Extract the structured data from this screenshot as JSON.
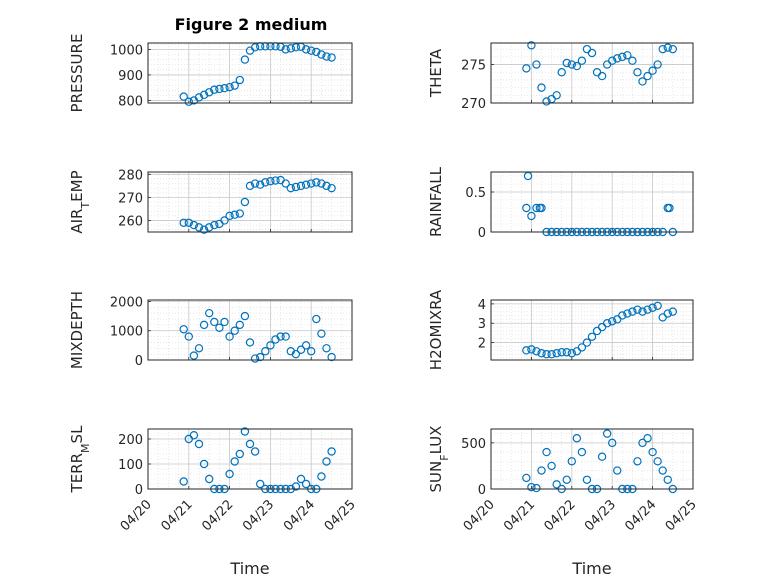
{
  "figure": {
    "title": "Figure 2 medium",
    "date_ticks": [
      "04/20",
      "04/21",
      "04/22",
      "04/23",
      "04/24",
      "04/25"
    ],
    "marker_color": "#0072BD",
    "marker": "open-circle",
    "grid": "major-and-minor-dotted"
  },
  "chart_data": [
    {
      "type": "scatter",
      "title": "Figure 2 medium",
      "ylabel": "PRESSURE",
      "ylabel_parts": [
        {
          "text": "PRESSURE"
        }
      ],
      "xlabel": "",
      "xlim": [
        "2023-04-20",
        "2023-04-25"
      ],
      "ylim": [
        790,
        1025
      ],
      "yticks": [
        "800",
        "900",
        "1000"
      ],
      "y_tick_values": [
        800,
        900,
        1000
      ],
      "xticks": [
        "04/20",
        "04/21",
        "04/22",
        "04/23",
        "04/24",
        "04/25"
      ],
      "show_xtick_labels": false,
      "grid": true,
      "x": [
        "04/20 21:00",
        "04/21 00:00",
        "04/21 03:00",
        "04/21 06:00",
        "04/21 09:00",
        "04/21 12:00",
        "04/21 15:00",
        "04/21 18:00",
        "04/21 21:00",
        "04/22 00:00",
        "04/22 03:00",
        "04/22 06:00",
        "04/22 09:00",
        "04/22 12:00",
        "04/22 15:00",
        "04/22 18:00",
        "04/22 21:00",
        "04/23 00:00",
        "04/23 03:00",
        "04/23 06:00",
        "04/23 09:00",
        "04/23 12:00",
        "04/23 15:00",
        "04/23 18:00",
        "04/23 21:00",
        "04/24 00:00",
        "04/24 03:00",
        "04/24 06:00",
        "04/24 09:00",
        "04/24 12:00"
      ],
      "y": [
        815,
        795,
        800,
        812,
        822,
        832,
        842,
        845,
        848,
        852,
        858,
        880,
        960,
        995,
        1008,
        1012,
        1012,
        1012,
        1012,
        1010,
        1000,
        1004,
        1008,
        1010,
        1000,
        995,
        990,
        980,
        972,
        968
      ]
    },
    {
      "type": "scatter",
      "ylabel": "THETA",
      "ylabel_parts": [
        {
          "text": "THETA"
        }
      ],
      "xlabel": "",
      "xlim": [
        "2023-04-20",
        "2023-04-25"
      ],
      "ylim": [
        270,
        277.8
      ],
      "yticks": [
        "270",
        "275"
      ],
      "y_tick_values": [
        270,
        275
      ],
      "xticks": [
        "04/20",
        "04/21",
        "04/22",
        "04/23",
        "04/24",
        "04/25"
      ],
      "show_xtick_labels": false,
      "grid": true,
      "x": [
        "04/20 21:00",
        "04/21 00:00",
        "04/21 03:00",
        "04/21 06:00",
        "04/21 09:00",
        "04/21 12:00",
        "04/21 15:00",
        "04/21 18:00",
        "04/21 21:00",
        "04/22 00:00",
        "04/22 03:00",
        "04/22 06:00",
        "04/22 09:00",
        "04/22 12:00",
        "04/22 15:00",
        "04/22 18:00",
        "04/22 21:00",
        "04/23 00:00",
        "04/23 03:00",
        "04/23 06:00",
        "04/23 09:00",
        "04/23 12:00",
        "04/23 15:00",
        "04/23 18:00",
        "04/23 21:00",
        "04/24 00:00",
        "04/24 03:00",
        "04/24 06:00",
        "04/24 09:00",
        "04/24 12:00"
      ],
      "y": [
        274.5,
        277.5,
        275,
        272,
        270.2,
        270.5,
        271,
        274,
        275.2,
        275,
        274.8,
        275.5,
        277,
        276.5,
        274,
        273.5,
        275,
        275.5,
        275.8,
        276,
        276.2,
        275.5,
        274,
        272.8,
        273.5,
        274.2,
        275,
        277,
        277.2,
        277
      ]
    },
    {
      "type": "scatter",
      "ylabel": "AIR_TEMP",
      "ylabel_parts": [
        {
          "text": "AIR"
        },
        {
          "text": "T",
          "sub": true
        },
        {
          "text": "EMP"
        }
      ],
      "xlabel": "",
      "xlim": [
        "2023-04-20",
        "2023-04-25"
      ],
      "ylim": [
        255,
        281
      ],
      "yticks": [
        "260",
        "270",
        "280"
      ],
      "y_tick_values": [
        260,
        270,
        280
      ],
      "xticks": [
        "04/20",
        "04/21",
        "04/22",
        "04/23",
        "04/24",
        "04/25"
      ],
      "show_xtick_labels": false,
      "grid": true,
      "x": [
        "04/20 21:00",
        "04/21 00:00",
        "04/21 03:00",
        "04/21 06:00",
        "04/21 09:00",
        "04/21 12:00",
        "04/21 15:00",
        "04/21 18:00",
        "04/21 21:00",
        "04/22 00:00",
        "04/22 03:00",
        "04/22 06:00",
        "04/22 09:00",
        "04/22 12:00",
        "04/22 15:00",
        "04/22 18:00",
        "04/22 21:00",
        "04/23 00:00",
        "04/23 03:00",
        "04/23 06:00",
        "04/23 09:00",
        "04/23 12:00",
        "04/23 15:00",
        "04/23 18:00",
        "04/23 21:00",
        "04/24 00:00",
        "04/24 03:00",
        "04/24 06:00",
        "04/24 09:00",
        "04/24 12:00"
      ],
      "y": [
        259,
        259,
        258,
        257,
        256,
        257,
        258,
        258.5,
        260,
        262,
        262.5,
        263,
        268,
        275,
        276,
        275.5,
        276.5,
        277,
        277.3,
        277.5,
        276,
        274,
        274.5,
        275,
        275.5,
        276,
        276.5,
        276,
        275,
        274
      ]
    },
    {
      "type": "scatter",
      "ylabel": "RAINFALL",
      "ylabel_parts": [
        {
          "text": "RAINFALL"
        }
      ],
      "xlabel": "",
      "xlim": [
        "2023-04-20",
        "2023-04-25"
      ],
      "ylim": [
        0,
        0.75
      ],
      "yticks": [
        "0",
        "0.5"
      ],
      "y_tick_values": [
        0,
        0.5
      ],
      "xticks": [
        "04/20",
        "04/21",
        "04/22",
        "04/23",
        "04/24",
        "04/25"
      ],
      "show_xtick_labels": false,
      "grid": true,
      "x": [
        "04/20 21:00",
        "04/20 22:00",
        "04/21 00:00",
        "04/21 03:00",
        "04/21 05:00",
        "04/21 06:00",
        "04/21 09:00",
        "04/21 12:00",
        "04/21 15:00",
        "04/21 18:00",
        "04/21 21:00",
        "04/22 00:00",
        "04/22 03:00",
        "04/22 06:00",
        "04/22 09:00",
        "04/22 12:00",
        "04/22 15:00",
        "04/22 18:00",
        "04/22 21:00",
        "04/23 00:00",
        "04/23 03:00",
        "04/23 06:00",
        "04/23 09:00",
        "04/23 12:00",
        "04/23 15:00",
        "04/23 18:00",
        "04/23 21:00",
        "04/24 00:00",
        "04/24 03:00",
        "04/24 06:00",
        "04/24 09:00",
        "04/24 10:00",
        "04/24 12:00"
      ],
      "y": [
        0.3,
        0.7,
        0.2,
        0.3,
        0.3,
        0.3,
        0,
        0,
        0,
        0,
        0,
        0,
        0,
        0,
        0,
        0,
        0,
        0,
        0,
        0,
        0,
        0,
        0,
        0,
        0,
        0,
        0,
        0,
        0,
        0,
        0.3,
        0.3,
        0
      ]
    },
    {
      "type": "scatter",
      "ylabel": "MIXDEPTH",
      "ylabel_parts": [
        {
          "text": "MIXDEPTH"
        }
      ],
      "xlabel": "",
      "xlim": [
        "2023-04-20",
        "2023-04-25"
      ],
      "ylim": [
        0,
        2050
      ],
      "yticks": [
        "0",
        "1000",
        "2000"
      ],
      "y_tick_values": [
        0,
        1000,
        2000
      ],
      "xticks": [
        "04/20",
        "04/21",
        "04/22",
        "04/23",
        "04/24",
        "04/25"
      ],
      "show_xtick_labels": false,
      "grid": true,
      "x": [
        "04/20 21:00",
        "04/21 00:00",
        "04/21 03:00",
        "04/21 06:00",
        "04/21 09:00",
        "04/21 12:00",
        "04/21 15:00",
        "04/21 18:00",
        "04/21 21:00",
        "04/22 00:00",
        "04/22 03:00",
        "04/22 06:00",
        "04/22 09:00",
        "04/22 12:00",
        "04/22 15:00",
        "04/22 18:00",
        "04/22 21:00",
        "04/23 00:00",
        "04/23 03:00",
        "04/23 06:00",
        "04/23 09:00",
        "04/23 12:00",
        "04/23 15:00",
        "04/23 18:00",
        "04/23 21:00",
        "04/24 00:00",
        "04/24 03:00",
        "04/24 06:00",
        "04/24 09:00",
        "04/24 12:00"
      ],
      "y": [
        1050,
        800,
        150,
        400,
        1200,
        1600,
        1300,
        1100,
        1300,
        800,
        1000,
        1200,
        1500,
        600,
        50,
        100,
        300,
        500,
        700,
        800,
        800,
        300,
        200,
        350,
        500,
        300,
        1400,
        900,
        400,
        100
      ]
    },
    {
      "type": "scatter",
      "ylabel": "H2OMIXRA",
      "ylabel_parts": [
        {
          "text": "H2OMIXRA"
        }
      ],
      "xlabel": "",
      "xlim": [
        "2023-04-20",
        "2023-04-25"
      ],
      "ylim": [
        1.1,
        4.2
      ],
      "yticks": [
        "2",
        "3",
        "4"
      ],
      "y_tick_values": [
        2,
        3,
        4
      ],
      "xticks": [
        "04/20",
        "04/21",
        "04/22",
        "04/23",
        "04/24",
        "04/25"
      ],
      "show_xtick_labels": false,
      "grid": true,
      "x": [
        "04/20 21:00",
        "04/21 00:00",
        "04/21 03:00",
        "04/21 06:00",
        "04/21 09:00",
        "04/21 12:00",
        "04/21 15:00",
        "04/21 18:00",
        "04/21 21:00",
        "04/22 00:00",
        "04/22 03:00",
        "04/22 06:00",
        "04/22 09:00",
        "04/22 12:00",
        "04/22 15:00",
        "04/22 18:00",
        "04/22 21:00",
        "04/23 00:00",
        "04/23 03:00",
        "04/23 06:00",
        "04/23 09:00",
        "04/23 12:00",
        "04/23 15:00",
        "04/23 18:00",
        "04/23 21:00",
        "04/24 00:00",
        "04/24 03:00",
        "04/24 06:00",
        "04/24 09:00",
        "04/24 12:00"
      ],
      "y": [
        1.6,
        1.65,
        1.55,
        1.45,
        1.4,
        1.4,
        1.45,
        1.5,
        1.5,
        1.45,
        1.55,
        1.75,
        2,
        2.3,
        2.6,
        2.8,
        3,
        3.1,
        3.2,
        3.4,
        3.5,
        3.6,
        3.7,
        3.6,
        3.7,
        3.8,
        3.9,
        3.3,
        3.5,
        3.6
      ]
    },
    {
      "type": "scatter",
      "ylabel": "TERR_MSL",
      "ylabel_parts": [
        {
          "text": "TERR"
        },
        {
          "text": "M",
          "sub": true
        },
        {
          "text": "SL"
        }
      ],
      "xlabel": "Time",
      "xlim": [
        "2023-04-20",
        "2023-04-25"
      ],
      "ylim": [
        0,
        240
      ],
      "yticks": [
        "0",
        "100",
        "200"
      ],
      "y_tick_values": [
        0,
        100,
        200
      ],
      "xticks": [
        "04/20",
        "04/21",
        "04/22",
        "04/23",
        "04/24",
        "04/25"
      ],
      "show_xtick_labels": true,
      "grid": true,
      "x": [
        "04/20 21:00",
        "04/21 00:00",
        "04/21 03:00",
        "04/21 06:00",
        "04/21 09:00",
        "04/21 12:00",
        "04/21 15:00",
        "04/21 18:00",
        "04/21 21:00",
        "04/22 00:00",
        "04/22 03:00",
        "04/22 06:00",
        "04/22 09:00",
        "04/22 12:00",
        "04/22 15:00",
        "04/22 18:00",
        "04/22 21:00",
        "04/23 00:00",
        "04/23 03:00",
        "04/23 06:00",
        "04/23 09:00",
        "04/23 12:00",
        "04/23 15:00",
        "04/23 18:00",
        "04/23 21:00",
        "04/24 00:00",
        "04/24 03:00",
        "04/24 06:00",
        "04/24 09:00",
        "04/24 12:00"
      ],
      "y": [
        30,
        200,
        215,
        180,
        100,
        40,
        0,
        0,
        0,
        60,
        110,
        140,
        230,
        180,
        150,
        20,
        0,
        0,
        0,
        0,
        0,
        0,
        10,
        40,
        20,
        0,
        0,
        50,
        110,
        150
      ]
    },
    {
      "type": "scatter",
      "ylabel": "SUN_FLUX",
      "ylabel_parts": [
        {
          "text": "SUN"
        },
        {
          "text": "F",
          "sub": true
        },
        {
          "text": "LUX"
        }
      ],
      "xlabel": "Time",
      "xlim": [
        "2023-04-20",
        "2023-04-25"
      ],
      "ylim": [
        0,
        650
      ],
      "yticks": [
        "0",
        "500"
      ],
      "y_tick_values": [
        0,
        500
      ],
      "xticks": [
        "04/20",
        "04/21",
        "04/22",
        "04/23",
        "04/24",
        "04/25"
      ],
      "show_xtick_labels": true,
      "grid": true,
      "x": [
        "04/20 21:00",
        "04/21 00:00",
        "04/21 03:00",
        "04/21 06:00",
        "04/21 09:00",
        "04/21 12:00",
        "04/21 15:00",
        "04/21 18:00",
        "04/21 21:00",
        "04/22 00:00",
        "04/22 03:00",
        "04/22 06:00",
        "04/22 09:00",
        "04/22 12:00",
        "04/22 15:00",
        "04/22 18:00",
        "04/22 21:00",
        "04/23 00:00",
        "04/23 03:00",
        "04/23 06:00",
        "04/23 09:00",
        "04/23 12:00",
        "04/23 15:00",
        "04/23 18:00",
        "04/23 21:00",
        "04/24 00:00",
        "04/24 03:00",
        "04/24 06:00",
        "04/24 09:00",
        "04/24 12:00"
      ],
      "y": [
        120,
        20,
        10,
        200,
        400,
        250,
        50,
        0,
        100,
        300,
        550,
        400,
        100,
        0,
        0,
        350,
        600,
        500,
        200,
        0,
        0,
        0,
        300,
        500,
        550,
        400,
        300,
        200,
        100,
        0
      ]
    }
  ]
}
